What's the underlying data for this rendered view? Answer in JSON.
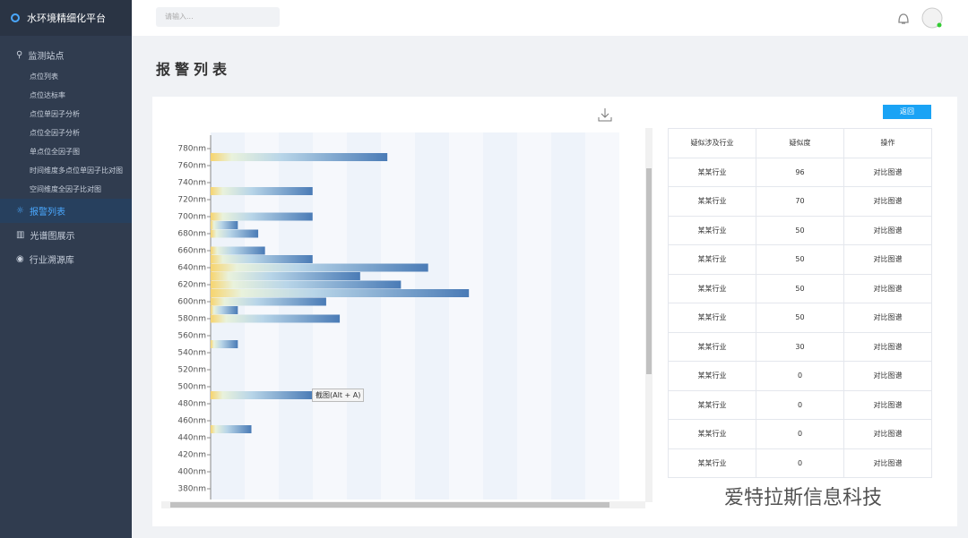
{
  "sidebar": {
    "title": "水环境精细化平台",
    "menu": [
      {
        "label": "监测站点",
        "children": [
          "点位列表",
          "点位达标率",
          "点位单因子分析",
          "点位全因子分析",
          "单点位全因子图",
          "时间维度多点位单因子比对图",
          "空间维度全因子比对图"
        ]
      },
      {
        "label": "报警列表"
      },
      {
        "label": "光谱图展示"
      },
      {
        "label": "行业溯源库"
      }
    ]
  },
  "header": {
    "search_placeholder": "请输入..."
  },
  "page_title": "报警列表",
  "back_button": "返回",
  "tooltip": "截图(Alt + A)",
  "watermark": "爱特拉斯信息科技",
  "chart_data": {
    "type": "bar",
    "orientation": "horizontal",
    "y": [
      770,
      730,
      700,
      690,
      680,
      660,
      650,
      640,
      630,
      620,
      610,
      600,
      590,
      580,
      550,
      490,
      450
    ],
    "values": [
      26,
      15,
      15,
      4,
      7,
      8,
      15,
      32,
      22,
      28,
      38,
      17,
      4,
      19,
      4,
      15,
      6
    ],
    "xlim": [
      0,
      60
    ],
    "ylim": [
      375,
      785
    ],
    "yticks": [
      {
        "value": 780,
        "label": "780nm"
      },
      {
        "value": 760,
        "label": "760nm"
      },
      {
        "value": 740,
        "label": "740nm"
      },
      {
        "value": 720,
        "label": "720nm"
      },
      {
        "value": 700,
        "label": "700nm"
      },
      {
        "value": 680,
        "label": "680nm"
      },
      {
        "value": 660,
        "label": "660nm"
      },
      {
        "value": 640,
        "label": "640nm"
      },
      {
        "value": 620,
        "label": "620nm"
      },
      {
        "value": 600,
        "label": "600nm"
      },
      {
        "value": 580,
        "label": "580nm"
      },
      {
        "value": 560,
        "label": "560nm"
      },
      {
        "value": 540,
        "label": "540nm"
      },
      {
        "value": 520,
        "label": "520nm"
      },
      {
        "value": 500,
        "label": "500nm"
      },
      {
        "value": 480,
        "label": "480nm"
      },
      {
        "value": 460,
        "label": "460nm"
      },
      {
        "value": 440,
        "label": "440nm"
      },
      {
        "value": 420,
        "label": "420nm"
      },
      {
        "value": 400,
        "label": "400nm"
      },
      {
        "value": 380,
        "label": "380nm"
      }
    ]
  },
  "table": {
    "header": [
      "疑似涉及行业",
      "疑似度",
      "操作"
    ],
    "rows": [
      [
        "某某行业",
        "96",
        "对比图谱"
      ],
      [
        "某某行业",
        "70",
        "对比图谱"
      ],
      [
        "某某行业",
        "50",
        "对比图谱"
      ],
      [
        "某某行业",
        "50",
        "对比图谱"
      ],
      [
        "某某行业",
        "50",
        "对比图谱"
      ],
      [
        "某某行业",
        "50",
        "对比图谱"
      ],
      [
        "某某行业",
        "30",
        "对比图谱"
      ],
      [
        "某某行业",
        "0",
        "对比图谱"
      ],
      [
        "某某行业",
        "0",
        "对比图谱"
      ],
      [
        "某某行业",
        "0",
        "对比图谱"
      ],
      [
        "某某行业",
        "0",
        "对比图谱"
      ]
    ]
  }
}
